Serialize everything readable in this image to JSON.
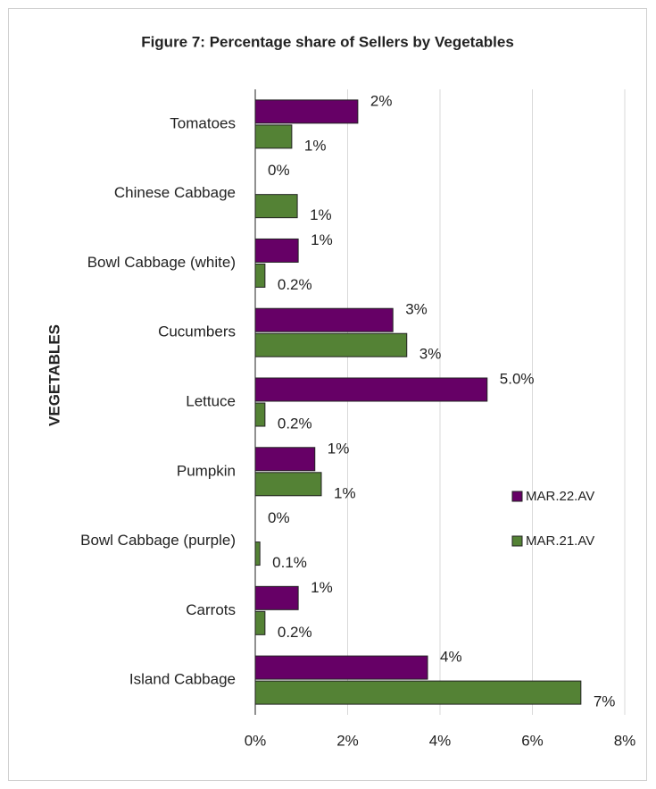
{
  "chart_data": {
    "type": "hbar",
    "title": "Figure 7: Percentage share of Sellers by Vegetables",
    "y_label": "VEGETABLES",
    "categories": [
      "Tomatoes",
      "Chinese Cabbage",
      "Bowl Cabbage (white)",
      "Cucumbers",
      "Lettuce",
      "Pumpkin",
      "Bowl Cabbage (purple)",
      "Carrots",
      "Island Cabbage"
    ],
    "series": [
      {
        "name": "MAR.22.AV",
        "color": "#660066",
        "values": [
          2.22,
          0,
          0.93,
          2.98,
          5.02,
          1.29,
          0,
          0.93,
          3.73
        ],
        "value_labels": [
          "2%",
          "0%",
          "1%",
          "3%",
          "5.0%",
          "1%",
          "0%",
          "1%",
          "4%"
        ]
      },
      {
        "name": "MAR.21.AV",
        "color": "#548235",
        "values": [
          0.79,
          0.91,
          0.21,
          3.28,
          0.21,
          1.43,
          0.1,
          0.21,
          7.05
        ],
        "value_labels": [
          "1%",
          "1%",
          "0.2%",
          "3%",
          "0.2%",
          "1%",
          "0.1%",
          "0.2%",
          "7%"
        ]
      }
    ],
    "xlim": [
      0,
      8
    ],
    "xticks": [
      {
        "value": 0,
        "label": "0%"
      },
      {
        "value": 2,
        "label": "2%"
      },
      {
        "value": 4,
        "label": "4%"
      },
      {
        "value": 6,
        "label": "6%"
      },
      {
        "value": 8,
        "label": "8%"
      }
    ],
    "grid": true,
    "legend": "right"
  }
}
